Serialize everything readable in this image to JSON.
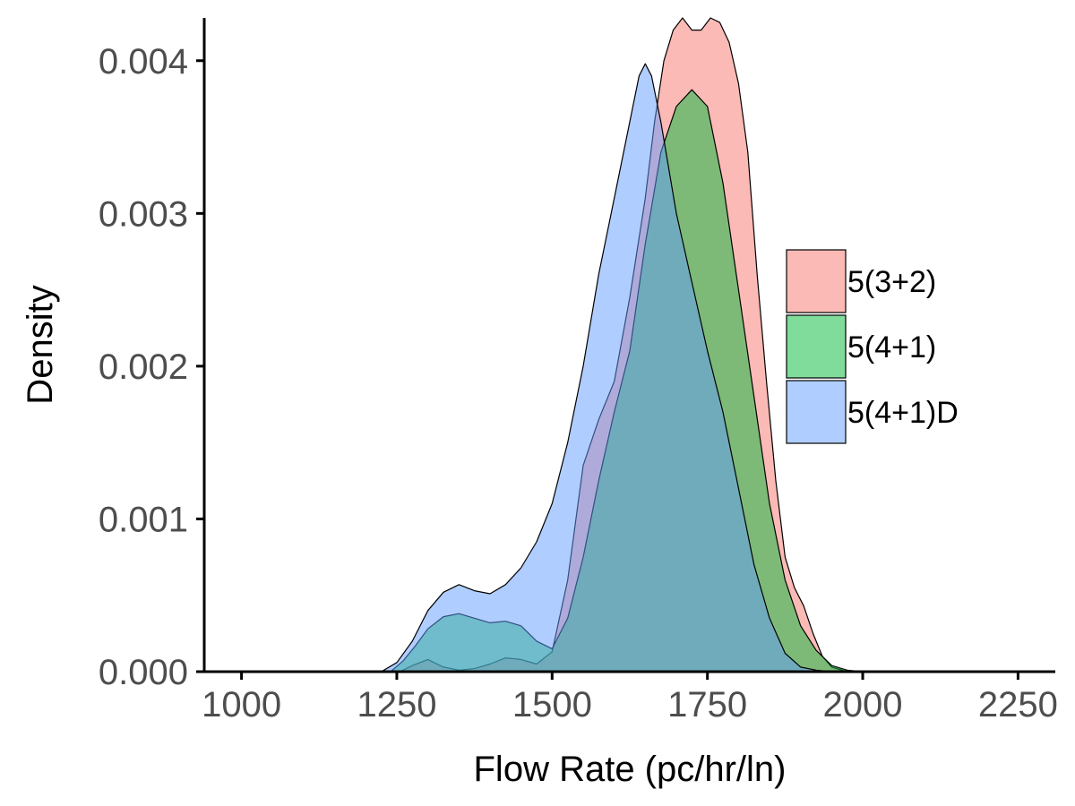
{
  "chart_data": {
    "type": "area",
    "xlabel": "Flow Rate (pc/hr/ln)",
    "ylabel": "Density",
    "xlim": [
      940,
      2310
    ],
    "ylim": [
      0,
      0.00428
    ],
    "x_ticks": [
      1000,
      1250,
      1500,
      1750,
      2000,
      2250
    ],
    "x_tick_labels": [
      "1000",
      "1250",
      "1500",
      "1750",
      "2000",
      "2250"
    ],
    "y_ticks": [
      0,
      0.001,
      0.002,
      0.003,
      0.004
    ],
    "y_tick_labels": [
      "0.000",
      "0.001",
      "0.002",
      "0.003",
      "0.004"
    ],
    "grid": false,
    "legend_position": "right",
    "series": [
      {
        "name": "5(3+2)",
        "color": "#F8766D",
        "x": [
          1255,
          1275,
          1300,
          1325,
          1350,
          1375,
          1400,
          1425,
          1450,
          1475,
          1500,
          1525,
          1550,
          1575,
          1600,
          1625,
          1650,
          1665,
          1680,
          1695,
          1710,
          1725,
          1740,
          1755,
          1770,
          1785,
          1800,
          1815,
          1830,
          1845,
          1860,
          1875,
          1890,
          1905,
          1920,
          1935,
          1950,
          1975
        ],
        "y": [
          0,
          4e-05,
          8e-05,
          3e-05,
          1e-05,
          2e-05,
          5e-05,
          9e-05,
          8e-05,
          5e-05,
          0.00013,
          0.0006,
          0.00135,
          0.00165,
          0.0019,
          0.00245,
          0.0031,
          0.0036,
          0.004,
          0.0042,
          0.00428,
          0.0042,
          0.0042,
          0.00428,
          0.00425,
          0.00412,
          0.00385,
          0.0034,
          0.0026,
          0.0019,
          0.00125,
          0.00075,
          0.00055,
          0.00043,
          0.00025,
          0.0001,
          3e-05,
          0
        ]
      },
      {
        "name": "5(4+1)",
        "color": "#00BA38",
        "x": [
          1240,
          1260,
          1280,
          1300,
          1325,
          1350,
          1375,
          1400,
          1425,
          1450,
          1475,
          1500,
          1525,
          1550,
          1575,
          1600,
          1625,
          1650,
          1675,
          1700,
          1725,
          1750,
          1775,
          1800,
          1825,
          1850,
          1875,
          1900,
          1925,
          1950,
          1975,
          2000
        ],
        "y": [
          0,
          7e-05,
          0.00017,
          0.00028,
          0.00036,
          0.00038,
          0.00035,
          0.00032,
          0.00033,
          0.0003,
          0.0002,
          0.00015,
          0.00035,
          0.00075,
          0.00125,
          0.0017,
          0.0021,
          0.0028,
          0.0034,
          0.0037,
          0.00381,
          0.0037,
          0.0032,
          0.0025,
          0.0018,
          0.0011,
          0.0006,
          0.0003,
          0.00014,
          4e-05,
          1e-05,
          0
        ]
      },
      {
        "name": "5(4+1)D",
        "color": "#619CFF",
        "x": [
          1225,
          1250,
          1275,
          1300,
          1325,
          1350,
          1375,
          1400,
          1425,
          1450,
          1475,
          1500,
          1525,
          1550,
          1575,
          1600,
          1625,
          1640,
          1650,
          1660,
          1675,
          1700,
          1725,
          1750,
          1775,
          1800,
          1825,
          1850,
          1875,
          1900,
          1925,
          1950
        ],
        "y": [
          0,
          6e-05,
          0.0002,
          0.0004,
          0.00052,
          0.00057,
          0.00053,
          0.00051,
          0.00057,
          0.00068,
          0.00085,
          0.0011,
          0.0015,
          0.002,
          0.0026,
          0.0031,
          0.0036,
          0.0039,
          0.00398,
          0.0039,
          0.0036,
          0.003,
          0.00255,
          0.0021,
          0.0017,
          0.0012,
          0.0007,
          0.00035,
          0.00012,
          3e-05,
          1e-05,
          0
        ]
      }
    ]
  }
}
